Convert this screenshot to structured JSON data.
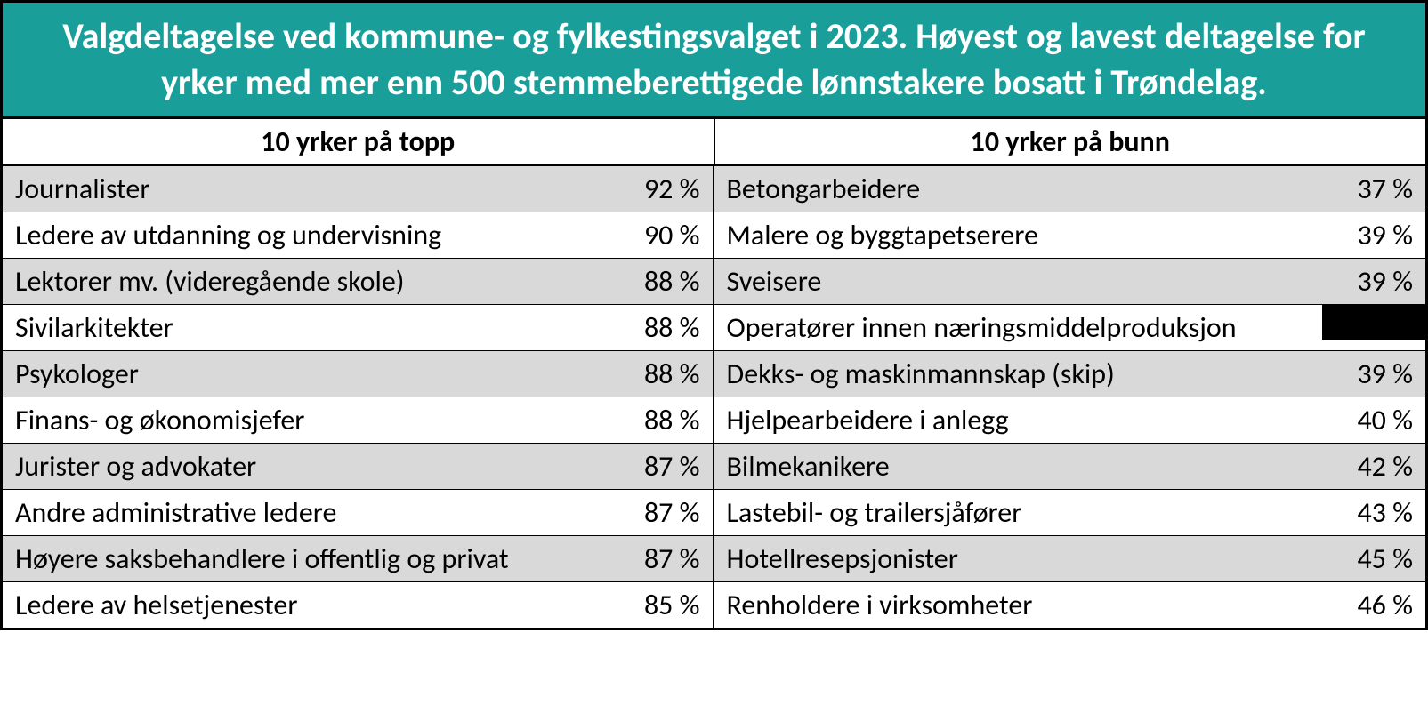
{
  "table": {
    "type": "table",
    "title": "Valgdeltagelse ved kommune- og fylkestingsvalget i 2023. Høyest og lavest deltagelse for yrker med mer enn 500 stemmeberettigede lønnstakere bosatt i Trøndelag.",
    "title_bg_color": "#1a9e9a",
    "title_text_color": "#ffffff",
    "title_fontsize": 40,
    "alt_row_color": "#d9d9d9",
    "border_color": "#000000",
    "columns": {
      "left_header": "10 yrker på topp",
      "right_header": "10 yrker på bunn"
    },
    "rows": [
      {
        "top_occupation": "Journalister",
        "top_pct": "92 %",
        "bottom_occupation": "Betongarbeidere",
        "bottom_pct": "37 %"
      },
      {
        "top_occupation": "Ledere av utdanning og undervisning",
        "top_pct": "90 %",
        "bottom_occupation": "Malere og byggtapetserere",
        "bottom_pct": "39 %"
      },
      {
        "top_occupation": "Lektorer mv. (videregående skole)",
        "top_pct": "88 %",
        "bottom_occupation": "Sveisere",
        "bottom_pct": "39 %"
      },
      {
        "top_occupation": "Sivilarkitekter",
        "top_pct": "88 %",
        "bottom_occupation": "Operatører innen næringsmiddelproduksjon",
        "bottom_pct": ""
      },
      {
        "top_occupation": "Psykologer",
        "top_pct": "88 %",
        "bottom_occupation": "Dekks- og maskinmannskap (skip)",
        "bottom_pct": "39 %"
      },
      {
        "top_occupation": "Finans- og økonomisjefer",
        "top_pct": "88 %",
        "bottom_occupation": "Hjelpearbeidere i anlegg",
        "bottom_pct": "40 %"
      },
      {
        "top_occupation": "Jurister og advokater",
        "top_pct": "87 %",
        "bottom_occupation": "Bilmekanikere",
        "bottom_pct": "42 %"
      },
      {
        "top_occupation": "Andre administrative ledere",
        "top_pct": "87 %",
        "bottom_occupation": "Lastebil- og trailersjåfører",
        "bottom_pct": "43 %"
      },
      {
        "top_occupation": "Høyere saksbehandlere i offentlig og privat",
        "top_pct": "87 %",
        "bottom_occupation": "Hotellresepsjonister",
        "bottom_pct": "45 %"
      },
      {
        "top_occupation": "Ledere av helsetjenester",
        "top_pct": "85 %",
        "bottom_occupation": "Renholdere i virksomheter",
        "bottom_pct": "46 %"
      }
    ]
  }
}
